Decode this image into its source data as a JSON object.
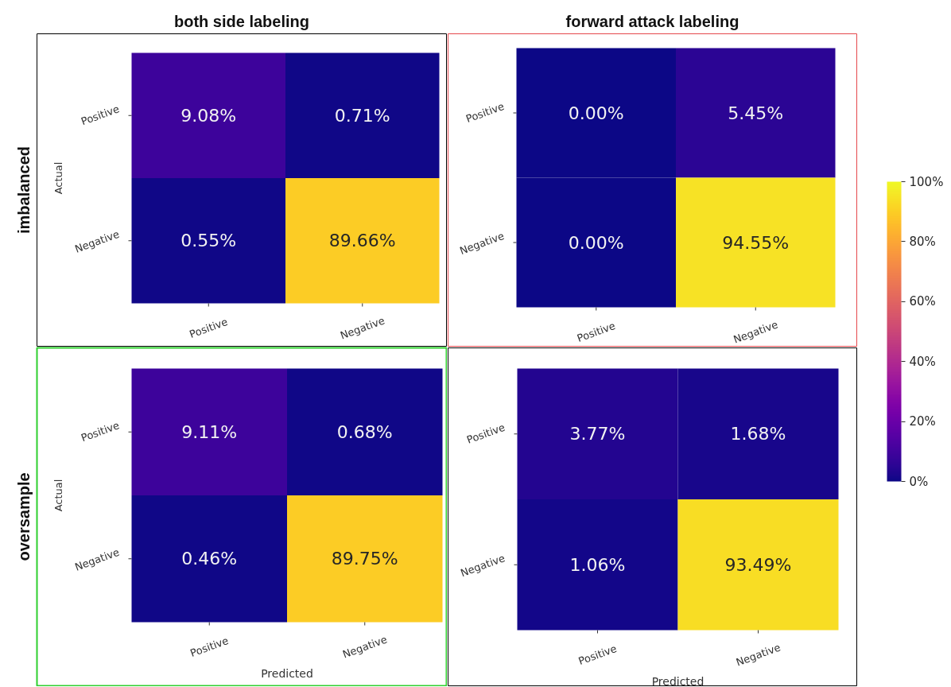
{
  "chart_data": [
    {
      "type": "heatmap",
      "title": "both side labeling",
      "ylabel": "Actual",
      "annotations": [
        "imbalanced"
      ],
      "categories": [
        "Positive",
        "Negative"
      ],
      "y_categories": [
        "Positive",
        "Negative"
      ],
      "cells": [
        [
          9.08,
          0.71
        ],
        [
          0.55,
          89.66
        ]
      ],
      "cell_labels": [
        [
          "9.08%",
          "0.71%"
        ],
        [
          "0.55%",
          "89.66%"
        ]
      ]
    },
    {
      "type": "heatmap",
      "title": "forward attack labeling",
      "categories": [
        "Positive",
        "Negative"
      ],
      "y_categories": [
        "Positive",
        "Negative"
      ],
      "cells": [
        [
          0.0,
          5.45
        ],
        [
          0.0,
          94.55
        ]
      ],
      "cell_labels": [
        [
          "0.00%",
          "5.45%"
        ],
        [
          "0.00%",
          "94.55%"
        ]
      ],
      "clim": [
        0,
        100
      ],
      "cticks": [
        {
          "value": 0,
          "label": "0%"
        },
        {
          "value": 20,
          "label": "20%"
        },
        {
          "value": 40,
          "label": "40%"
        },
        {
          "value": 60,
          "label": "60%"
        },
        {
          "value": 80,
          "label": "80%"
        },
        {
          "value": 100,
          "label": "100%"
        }
      ]
    },
    {
      "type": "heatmap",
      "xlabel": "Predicted",
      "ylabel": "Actual",
      "annotations": [
        "oversample"
      ],
      "categories": [
        "Positive",
        "Negative"
      ],
      "y_categories": [
        "Positive",
        "Negative"
      ],
      "cells": [
        [
          9.11,
          0.68
        ],
        [
          0.46,
          89.75
        ]
      ],
      "cell_labels": [
        [
          "9.11%",
          "0.68%"
        ],
        [
          "0.46%",
          "89.75%"
        ]
      ]
    },
    {
      "type": "heatmap",
      "xlabel": "Predicted",
      "categories": [
        "Positive",
        "Negative"
      ],
      "y_categories": [
        "Positive",
        "Negative"
      ],
      "cells": [
        [
          3.77,
          1.68
        ],
        [
          1.06,
          93.49
        ]
      ],
      "cell_labels": [
        [
          "3.77%",
          "1.68%"
        ],
        [
          "1.06%",
          "93.49%"
        ]
      ]
    }
  ]
}
